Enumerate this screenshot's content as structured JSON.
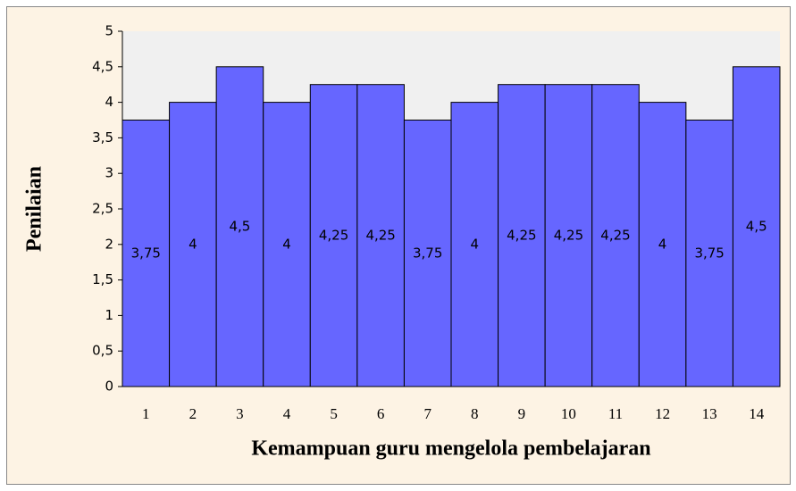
{
  "chart_data": {
    "type": "bar",
    "x_label": "Kemampuan guru mengelola pembelajaran",
    "y_label": "Penilaian",
    "categories": [
      "1",
      "2",
      "3",
      "4",
      "5",
      "6",
      "7",
      "8",
      "9",
      "10",
      "11",
      "12",
      "13",
      "14"
    ],
    "values": [
      3.75,
      4,
      4.5,
      4,
      4.25,
      4.25,
      3.75,
      4,
      4.25,
      4.25,
      4.25,
      4,
      3.75,
      4.5
    ],
    "value_labels": [
      "3,75",
      "4",
      "4,5",
      "4",
      "4,25",
      "4,25",
      "3,75",
      "4",
      "4,25",
      "4,25",
      "4,25",
      "4",
      "3,75",
      "4,5"
    ],
    "color": "#6666ff",
    "ylim": [
      0,
      5
    ],
    "yticks": [
      0,
      {
        "value": 0.5,
        "label": "0,5"
      },
      1,
      {
        "value": 1.5,
        "label": "1,5"
      },
      2,
      {
        "value": 2.5,
        "label": "2,5"
      },
      3,
      {
        "value": 3.5,
        "label": "3,5"
      },
      4,
      {
        "value": 4.5,
        "label": "4,5"
      },
      5
    ]
  }
}
